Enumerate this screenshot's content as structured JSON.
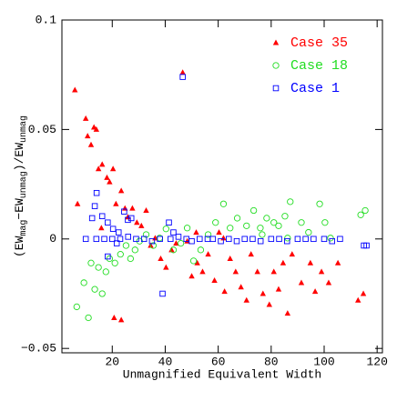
{
  "chart_data": {
    "type": "scatter",
    "xlabel": "Unmagnified Equivalent Width",
    "ylabel_parts": [
      "(EW",
      "mag",
      "−EW",
      "unmag",
      ")/EW",
      "unmag"
    ],
    "xlim": [
      1,
      122
    ],
    "ylim": [
      -0.052,
      0.1
    ],
    "xticks": [
      20,
      40,
      60,
      80,
      100,
      120
    ],
    "yticks": [
      {
        "value": -0.05,
        "label": "−0.05"
      },
      0,
      0.05,
      0.1
    ],
    "legend": "top-right",
    "series": [
      {
        "name": "Case 35",
        "color": "#ff0000",
        "marker": "triangle",
        "x": [
          5.9,
          6.9,
          10,
          10.7,
          12,
          13.1,
          14,
          14.8,
          16.2,
          18,
          19,
          20.3,
          21.4,
          23.4,
          24.8,
          25.9,
          27.6,
          29.3,
          31,
          32.8,
          20.7,
          23.4,
          15.9,
          34.5,
          36.2,
          38.3,
          40.3,
          42.4,
          44.1,
          46.6,
          48.3,
          50,
          52.1,
          54.1,
          56.2,
          58.6,
          60.3,
          62.4,
          64.5,
          66.6,
          68.6,
          70.7,
          72.4,
          74.8,
          76.9,
          79.3,
          81,
          82.8,
          84.5,
          86.2,
          87.9,
          91.4,
          94.8,
          96.6,
          99,
          101.7,
          105.2,
          112.8,
          114.8,
          51.7,
          62
        ],
        "values": [
          0.068,
          0.016,
          0.055,
          0.047,
          0.043,
          0.051,
          0.05,
          0.032,
          0.034,
          0.028,
          0.026,
          0.032,
          0.016,
          0.022,
          0.014,
          0.01,
          0.014,
          0.0075,
          0.006,
          0.013,
          -0.036,
          -0.037,
          0.005,
          -0.003,
          0.0004,
          -0.009,
          -0.013,
          -0.005,
          -0.002,
          0.076,
          -0.001,
          -0.017,
          -0.011,
          -0.015,
          -0.007,
          -0.019,
          0.003,
          -0.024,
          -0.009,
          -0.015,
          -0.022,
          -0.028,
          -0.007,
          -0.015,
          -0.025,
          -0.03,
          -0.015,
          -0.023,
          -0.011,
          -0.034,
          -0.007,
          -0.02,
          -0.011,
          -0.024,
          -0.015,
          -0.02,
          -0.011,
          -0.028,
          -0.025,
          0.003,
          0.0004
        ]
      },
      {
        "name": "Case 18",
        "color": "#22dd22",
        "marker": "circle",
        "x": [
          6.6,
          9.3,
          11,
          12,
          13.4,
          14.8,
          16.2,
          17.6,
          19,
          21,
          23.1,
          25.2,
          26.9,
          28.6,
          30.3,
          32.8,
          35.5,
          37.9,
          40.3,
          43.1,
          45.9,
          48.3,
          50.7,
          53.4,
          56.2,
          59,
          62,
          64.5,
          67.2,
          70.7,
          73.4,
          75.9,
          78.3,
          81,
          82.8,
          85.2,
          87.2,
          91.4,
          94.1,
          98.3,
          100.3,
          102.4,
          113.8,
          115.5,
          76.6,
          86.2
        ],
        "values": [
          -0.031,
          -0.02,
          -0.036,
          -0.011,
          -0.023,
          -0.013,
          -0.025,
          -0.015,
          -0.009,
          -0.011,
          -0.007,
          -0.003,
          -0.009,
          -0.005,
          -0.001,
          0.002,
          -0.003,
          0.0004,
          0.0046,
          -0.005,
          -0.002,
          0.005,
          -0.01,
          -0.005,
          0.002,
          0.0075,
          0.016,
          0.005,
          0.0095,
          0.006,
          0.013,
          0.005,
          0.0095,
          0.0075,
          0.006,
          0.0104,
          0.017,
          0.0075,
          0.003,
          0.016,
          0.0075,
          0.0004,
          0.011,
          0.013,
          0.002,
          0.0004
        ]
      },
      {
        "name": "Case 1",
        "color": "#0000ff",
        "marker": "square",
        "x": [
          12.4,
          13.4,
          14.1,
          16.2,
          18.3,
          20.3,
          22.4,
          24.5,
          25.9,
          27.2,
          21.7,
          18.3,
          46.6,
          39,
          41.4,
          43.1,
          10,
          14,
          17,
          20,
          23,
          26,
          29,
          32,
          35,
          38,
          42,
          45,
          48,
          50,
          53,
          56,
          58,
          61,
          64,
          67,
          70,
          73,
          76,
          80,
          83,
          86,
          90,
          93,
          96,
          100,
          103,
          106,
          115,
          116
        ],
        "values": [
          0.0095,
          0.015,
          0.021,
          0.0104,
          0.0075,
          0.0046,
          0.003,
          0.0125,
          0.0087,
          0.0095,
          -0.002,
          -0.008,
          0.074,
          -0.025,
          0.0075,
          0.003,
          0,
          0,
          0,
          0,
          0,
          0.001,
          0,
          0,
          -0.001,
          0,
          0,
          0.001,
          0,
          -0.001,
          0,
          0,
          0,
          -0.001,
          0,
          -0.001,
          0,
          0,
          -0.001,
          0,
          0,
          -0.001,
          0,
          0,
          0,
          0,
          -0.001,
          0,
          -0.003,
          -0.003
        ]
      }
    ]
  }
}
